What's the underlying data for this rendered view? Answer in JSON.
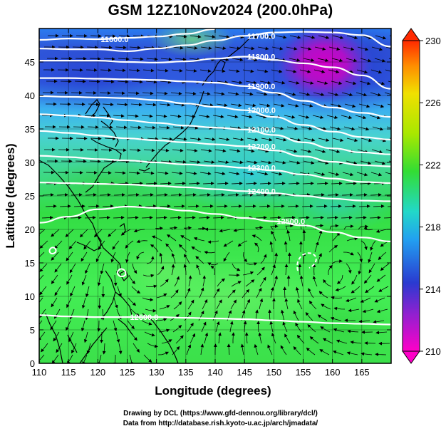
{
  "title": "GSM 12Z10Nov2024 (200.0hPa)",
  "footer": {
    "line1": "Drawing by DCL (https://www.gfd-dennou.org/library/dcl/)",
    "line2": "Data from http://database.rish.kyoto-u.ac.jp/arch/jmadata/"
  },
  "map": {
    "xlabel": "Longitude (degrees)",
    "ylabel": "Latitude (degrees)",
    "x_ticks": [
      "110",
      "115",
      "120",
      "125",
      "130",
      "135",
      "140",
      "145",
      "150",
      "155",
      "160",
      "165"
    ],
    "y_ticks": [
      "0",
      "5",
      "10",
      "15",
      "20",
      "25",
      "30",
      "35",
      "40",
      "45"
    ],
    "lon_range": [
      110,
      170
    ],
    "lat_range": [
      0,
      50
    ],
    "colorbar": {
      "min": 210,
      "max": 230,
      "tick_labels": [
        "230",
        "226",
        "222",
        "218",
        "214",
        "210"
      ],
      "colors": [
        "#d400c8",
        "#4060e0",
        "#22a0f0",
        "#33dd33",
        "#e8e000",
        "#ff2000"
      ]
    },
    "contours": [
      {
        "label": "11600.0",
        "lat": [
          48.3,
          48.5,
          48.4,
          48.6,
          48.8,
          49.2,
          49.9
        ]
      },
      {
        "label": "11700.0",
        "lat": [
          47.0,
          46.9,
          46.9,
          46.6,
          47.0,
          47.5,
          48.2,
          48.9,
          49.4,
          49.5,
          49.4,
          49.0,
          47.3
        ]
      },
      {
        "label": "11800.0",
        "lat": [
          45.2,
          45.2,
          45.2,
          45.0,
          44.9,
          45.1,
          45.5,
          45.8,
          45.3,
          44.8,
          44.2,
          43.0,
          41.0
        ]
      },
      {
        "label": "11900.0",
        "lat": [
          42.6,
          42.6,
          42.5,
          42.4,
          42.3,
          42.1,
          41.9,
          41.4,
          40.4,
          39.2,
          38.2,
          37.4,
          36.8
        ]
      },
      {
        "label": "12000.0",
        "lat": [
          39.9,
          39.8,
          39.7,
          39.6,
          39.3,
          38.8,
          38.3,
          37.8,
          36.8,
          35.6,
          34.6,
          33.8,
          33.4
        ]
      },
      {
        "label": "12100.0",
        "lat": [
          37.2,
          37.0,
          36.7,
          36.3,
          35.9,
          35.5,
          35.2,
          34.9,
          34.1,
          33.0,
          32.1,
          31.5,
          31.2
        ]
      },
      {
        "label": "12200.0",
        "lat": [
          34.7,
          34.4,
          34.0,
          33.6,
          33.3,
          33.0,
          32.7,
          32.4,
          31.8,
          30.9,
          30.1,
          29.6,
          29.4
        ]
      },
      {
        "label": "12300.0",
        "lat": [
          31.0,
          30.8,
          30.5,
          30.3,
          30.0,
          29.7,
          29.5,
          29.2,
          28.8,
          28.2,
          27.6,
          27.1,
          26.9
        ]
      },
      {
        "label": "12400.0",
        "lat": [
          27.0,
          26.9,
          26.8,
          26.7,
          26.5,
          26.3,
          26.0,
          25.7,
          25.4,
          25.0,
          24.6,
          24.3,
          24.2
        ]
      },
      {
        "label": "12500.0",
        "lat": [
          21.0,
          21.9,
          23.0,
          23.4,
          23.2,
          22.8,
          22.3,
          21.7,
          21.2,
          20.6,
          19.6,
          18.8,
          18.2
        ]
      },
      {
        "label": "12600.0",
        "lat": [
          7.2,
          7.0,
          6.9,
          6.9,
          6.9,
          6.8,
          6.7,
          6.6,
          6.4,
          6.2,
          6.0,
          5.9,
          5.8
        ]
      }
    ],
    "contour_lon": [
      110,
      115,
      120,
      125,
      130,
      135,
      140,
      145,
      150,
      155,
      160,
      165,
      170
    ]
  }
}
